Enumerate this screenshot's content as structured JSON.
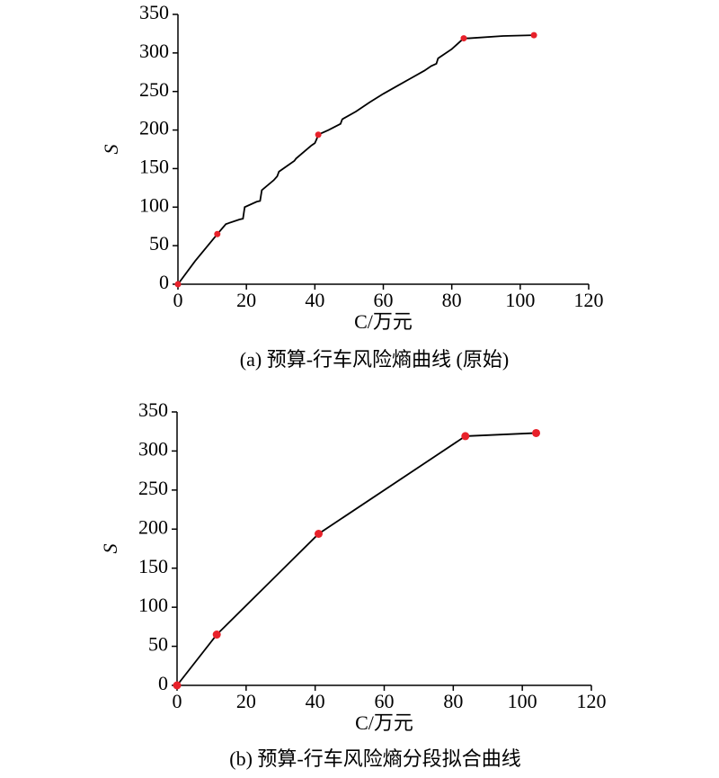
{
  "chart_data": [
    {
      "type": "line",
      "ylabel": "S",
      "xlabel": "C/万元",
      "caption": "(a) 预算-行车风险熵曲线 (原始)",
      "xlim": [
        0,
        120
      ],
      "ylim": [
        0,
        350
      ],
      "xticks": [
        0,
        20,
        40,
        60,
        80,
        100,
        120
      ],
      "yticks": [
        0,
        50,
        100,
        150,
        200,
        250,
        300,
        350
      ],
      "series": [
        {
          "color": "#000000",
          "line": true,
          "x": [
            0,
            5,
            11.5,
            14,
            18,
            19,
            19.5,
            23,
            24,
            24.5,
            28,
            29,
            29.5,
            34,
            34.5,
            39,
            40,
            40.5,
            41,
            44,
            47.5,
            48,
            52,
            56,
            60,
            64,
            68,
            72,
            74,
            75.5,
            76,
            80,
            83.5,
            85,
            95,
            104
          ],
          "values": [
            0,
            30,
            65,
            78,
            84,
            85,
            100,
            107,
            108,
            122,
            135,
            140,
            146,
            160,
            163,
            180,
            183,
            188,
            194,
            200,
            208,
            214,
            224,
            236,
            247,
            257,
            267,
            277,
            283,
            286,
            293,
            305,
            319,
            319,
            322,
            323
          ]
        },
        {
          "color": "#e8212a",
          "line": false,
          "marker_color": "#e8212a",
          "x": [
            0,
            11.5,
            41,
            83.5,
            104
          ],
          "values": [
            0,
            65,
            194,
            319,
            323
          ]
        }
      ]
    },
    {
      "type": "line",
      "ylabel": "S",
      "xlabel": "C/万元",
      "caption": "(b) 预算-行车风险熵分段拟合曲线",
      "xlim": [
        0,
        120
      ],
      "ylim": [
        0,
        350
      ],
      "xticks": [
        0,
        20,
        40,
        60,
        80,
        100,
        120
      ],
      "yticks": [
        0,
        50,
        100,
        150,
        200,
        250,
        300,
        350
      ],
      "series": [
        {
          "color": "#000000",
          "line": true,
          "marker_color": "#e8212a",
          "x": [
            0,
            11.5,
            41,
            83.5,
            104
          ],
          "values": [
            0,
            65,
            194,
            319,
            323
          ]
        }
      ]
    }
  ]
}
